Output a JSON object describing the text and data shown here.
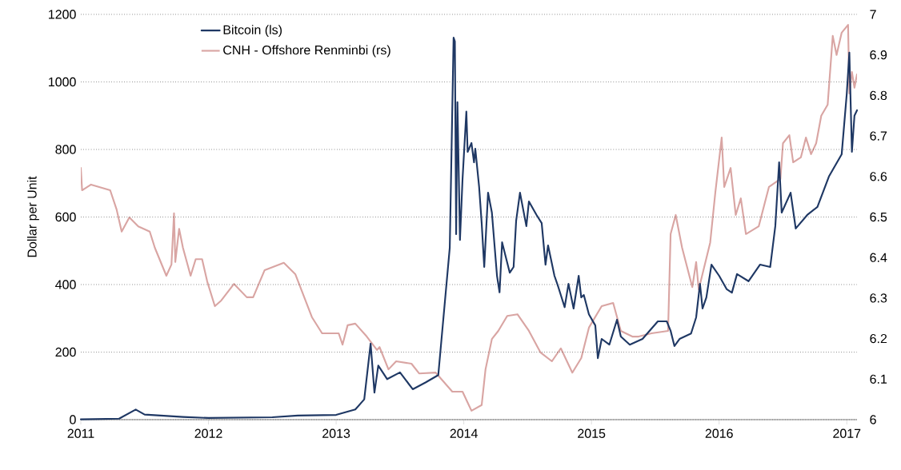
{
  "chart_data": {
    "type": "line",
    "ylabel": "Dollar per Unit",
    "xlim": [
      2011,
      2017.08
    ],
    "xticks": [
      2011,
      2012,
      2013,
      2014,
      2015,
      2016,
      2017
    ],
    "ylim": [
      0,
      1200
    ],
    "yticks": [
      0,
      200,
      400,
      600,
      800,
      1000,
      1200
    ],
    "y2lim": [
      6,
      7
    ],
    "y2ticks": [
      6,
      6.1,
      6.2,
      6.3,
      6.4,
      6.5,
      6.6,
      6.7,
      6.8,
      6.9,
      7
    ],
    "grid": "y",
    "legend": "top",
    "line_style": "solid",
    "marker": "none",
    "series": [
      {
        "name": "Bitcoin (ls)",
        "color": "#1f3864",
        "axis": "y",
        "x": [
          2011.0,
          2011.3,
          2011.43,
          2011.5,
          2011.8,
          2012.0,
          2012.5,
          2012.7,
          2013.0,
          2013.15,
          2013.22,
          2013.27,
          2013.3,
          2013.33,
          2013.4,
          2013.5,
          2013.6,
          2013.7,
          2013.8,
          2013.89,
          2013.92,
          2013.93,
          2013.94,
          2013.95,
          2013.97,
          2013.99,
          2014.02,
          2014.03,
          2014.06,
          2014.08,
          2014.09,
          2014.12,
          2014.14,
          2014.16,
          2014.19,
          2014.22,
          2014.26,
          2014.28,
          2014.3,
          2014.36,
          2014.39,
          2014.41,
          2014.44,
          2014.49,
          2014.51,
          2014.57,
          2014.61,
          2014.64,
          2014.66,
          2014.71,
          2014.74,
          2014.79,
          2014.82,
          2014.86,
          2014.9,
          2014.92,
          2014.94,
          2014.98,
          2015.03,
          2015.05,
          2015.08,
          2015.14,
          2015.2,
          2015.23,
          2015.3,
          2015.4,
          2015.52,
          2015.59,
          2015.62,
          2015.65,
          2015.69,
          2015.78,
          2015.82,
          2015.85,
          2015.87,
          2015.9,
          2015.94,
          2016.0,
          2016.06,
          2016.1,
          2016.14,
          2016.23,
          2016.32,
          2016.4,
          2016.44,
          2016.47,
          2016.49,
          2016.56,
          2016.6,
          2016.69,
          2016.77,
          2016.86,
          2016.96,
          2017.0,
          2017.02,
          2017.04,
          2017.06,
          2017.08
        ],
        "values": [
          1,
          3,
          30,
          15,
          8,
          5,
          7,
          12,
          14,
          30,
          60,
          225,
          80,
          160,
          120,
          140,
          90,
          110,
          132,
          509,
          1131,
          1120,
          549,
          940,
          532,
          712,
          912,
          793,
          819,
          762,
          802,
          689,
          582,
          452,
          672,
          613,
          426,
          377,
          525,
          435,
          452,
          589,
          672,
          573,
          646,
          606,
          582,
          459,
          516,
          426,
          393,
          333,
          402,
          329,
          426,
          362,
          369,
          312,
          279,
          182,
          239,
          222,
          296,
          246,
          222,
          239,
          291,
          291,
          263,
          218,
          239,
          255,
          303,
          402,
          329,
          362,
          459,
          426,
          386,
          376,
          431,
          410,
          459,
          452,
          573,
          762,
          613,
          672,
          566,
          606,
          630,
          720,
          786,
          966,
          1087,
          793,
          900,
          916
        ]
      },
      {
        "name": "CNH - Offshore Renminbi (rs)",
        "color": "#d9a5a3",
        "axis": "y2",
        "x": [
          2011.0,
          2011.01,
          2011.08,
          2011.23,
          2011.28,
          2011.32,
          2011.38,
          2011.45,
          2011.54,
          2011.58,
          2011.67,
          2011.71,
          2011.73,
          2011.74,
          2011.77,
          2011.8,
          2011.86,
          2011.9,
          2011.95,
          2011.99,
          2012.05,
          2012.1,
          2012.2,
          2012.3,
          2012.35,
          2012.44,
          2012.59,
          2012.68,
          2012.81,
          2012.89,
          2013.02,
          2013.05,
          2013.09,
          2013.15,
          2013.24,
          2013.32,
          2013.34,
          2013.41,
          2013.47,
          2013.59,
          2013.65,
          2013.78,
          2013.91,
          2013.99,
          2014.06,
          2014.14,
          2014.17,
          2014.22,
          2014.27,
          2014.34,
          2014.42,
          2014.51,
          2014.6,
          2014.69,
          2014.76,
          2014.85,
          2014.92,
          2014.98,
          2015.08,
          2015.17,
          2015.23,
          2015.32,
          2015.37,
          2015.47,
          2015.6,
          2015.62,
          2015.66,
          2015.71,
          2015.79,
          2015.82,
          2015.84,
          2015.93,
          2015.97,
          2016.02,
          2016.04,
          2016.09,
          2016.13,
          2016.17,
          2016.21,
          2016.31,
          2016.39,
          2016.48,
          2016.5,
          2016.55,
          2016.58,
          2016.64,
          2016.68,
          2016.72,
          2016.76,
          2016.8,
          2016.85,
          2016.89,
          2016.92,
          2016.96,
          2017.01,
          2017.02,
          2017.04,
          2017.06,
          2017.08
        ],
        "values": [
          6.621,
          6.566,
          6.58,
          6.566,
          6.519,
          6.464,
          6.499,
          6.477,
          6.464,
          6.424,
          6.355,
          6.383,
          6.509,
          6.389,
          6.471,
          6.424,
          6.355,
          6.396,
          6.396,
          6.341,
          6.28,
          6.294,
          6.335,
          6.302,
          6.302,
          6.369,
          6.387,
          6.359,
          6.253,
          6.213,
          6.213,
          6.185,
          6.233,
          6.237,
          6.205,
          6.172,
          6.179,
          6.124,
          6.144,
          6.138,
          6.114,
          6.116,
          6.069,
          6.069,
          6.022,
          6.036,
          6.124,
          6.199,
          6.219,
          6.256,
          6.26,
          6.219,
          6.166,
          6.144,
          6.176,
          6.116,
          6.152,
          6.227,
          6.28,
          6.288,
          6.219,
          6.205,
          6.205,
          6.213,
          6.219,
          6.458,
          6.505,
          6.424,
          6.327,
          6.389,
          6.321,
          6.437,
          6.56,
          6.696,
          6.574,
          6.621,
          6.505,
          6.546,
          6.458,
          6.477,
          6.574,
          6.594,
          6.682,
          6.702,
          6.635,
          6.647,
          6.696,
          6.655,
          6.682,
          6.75,
          6.777,
          6.947,
          6.9,
          6.955,
          6.974,
          6.805,
          6.858,
          6.819,
          6.852
        ]
      }
    ]
  }
}
